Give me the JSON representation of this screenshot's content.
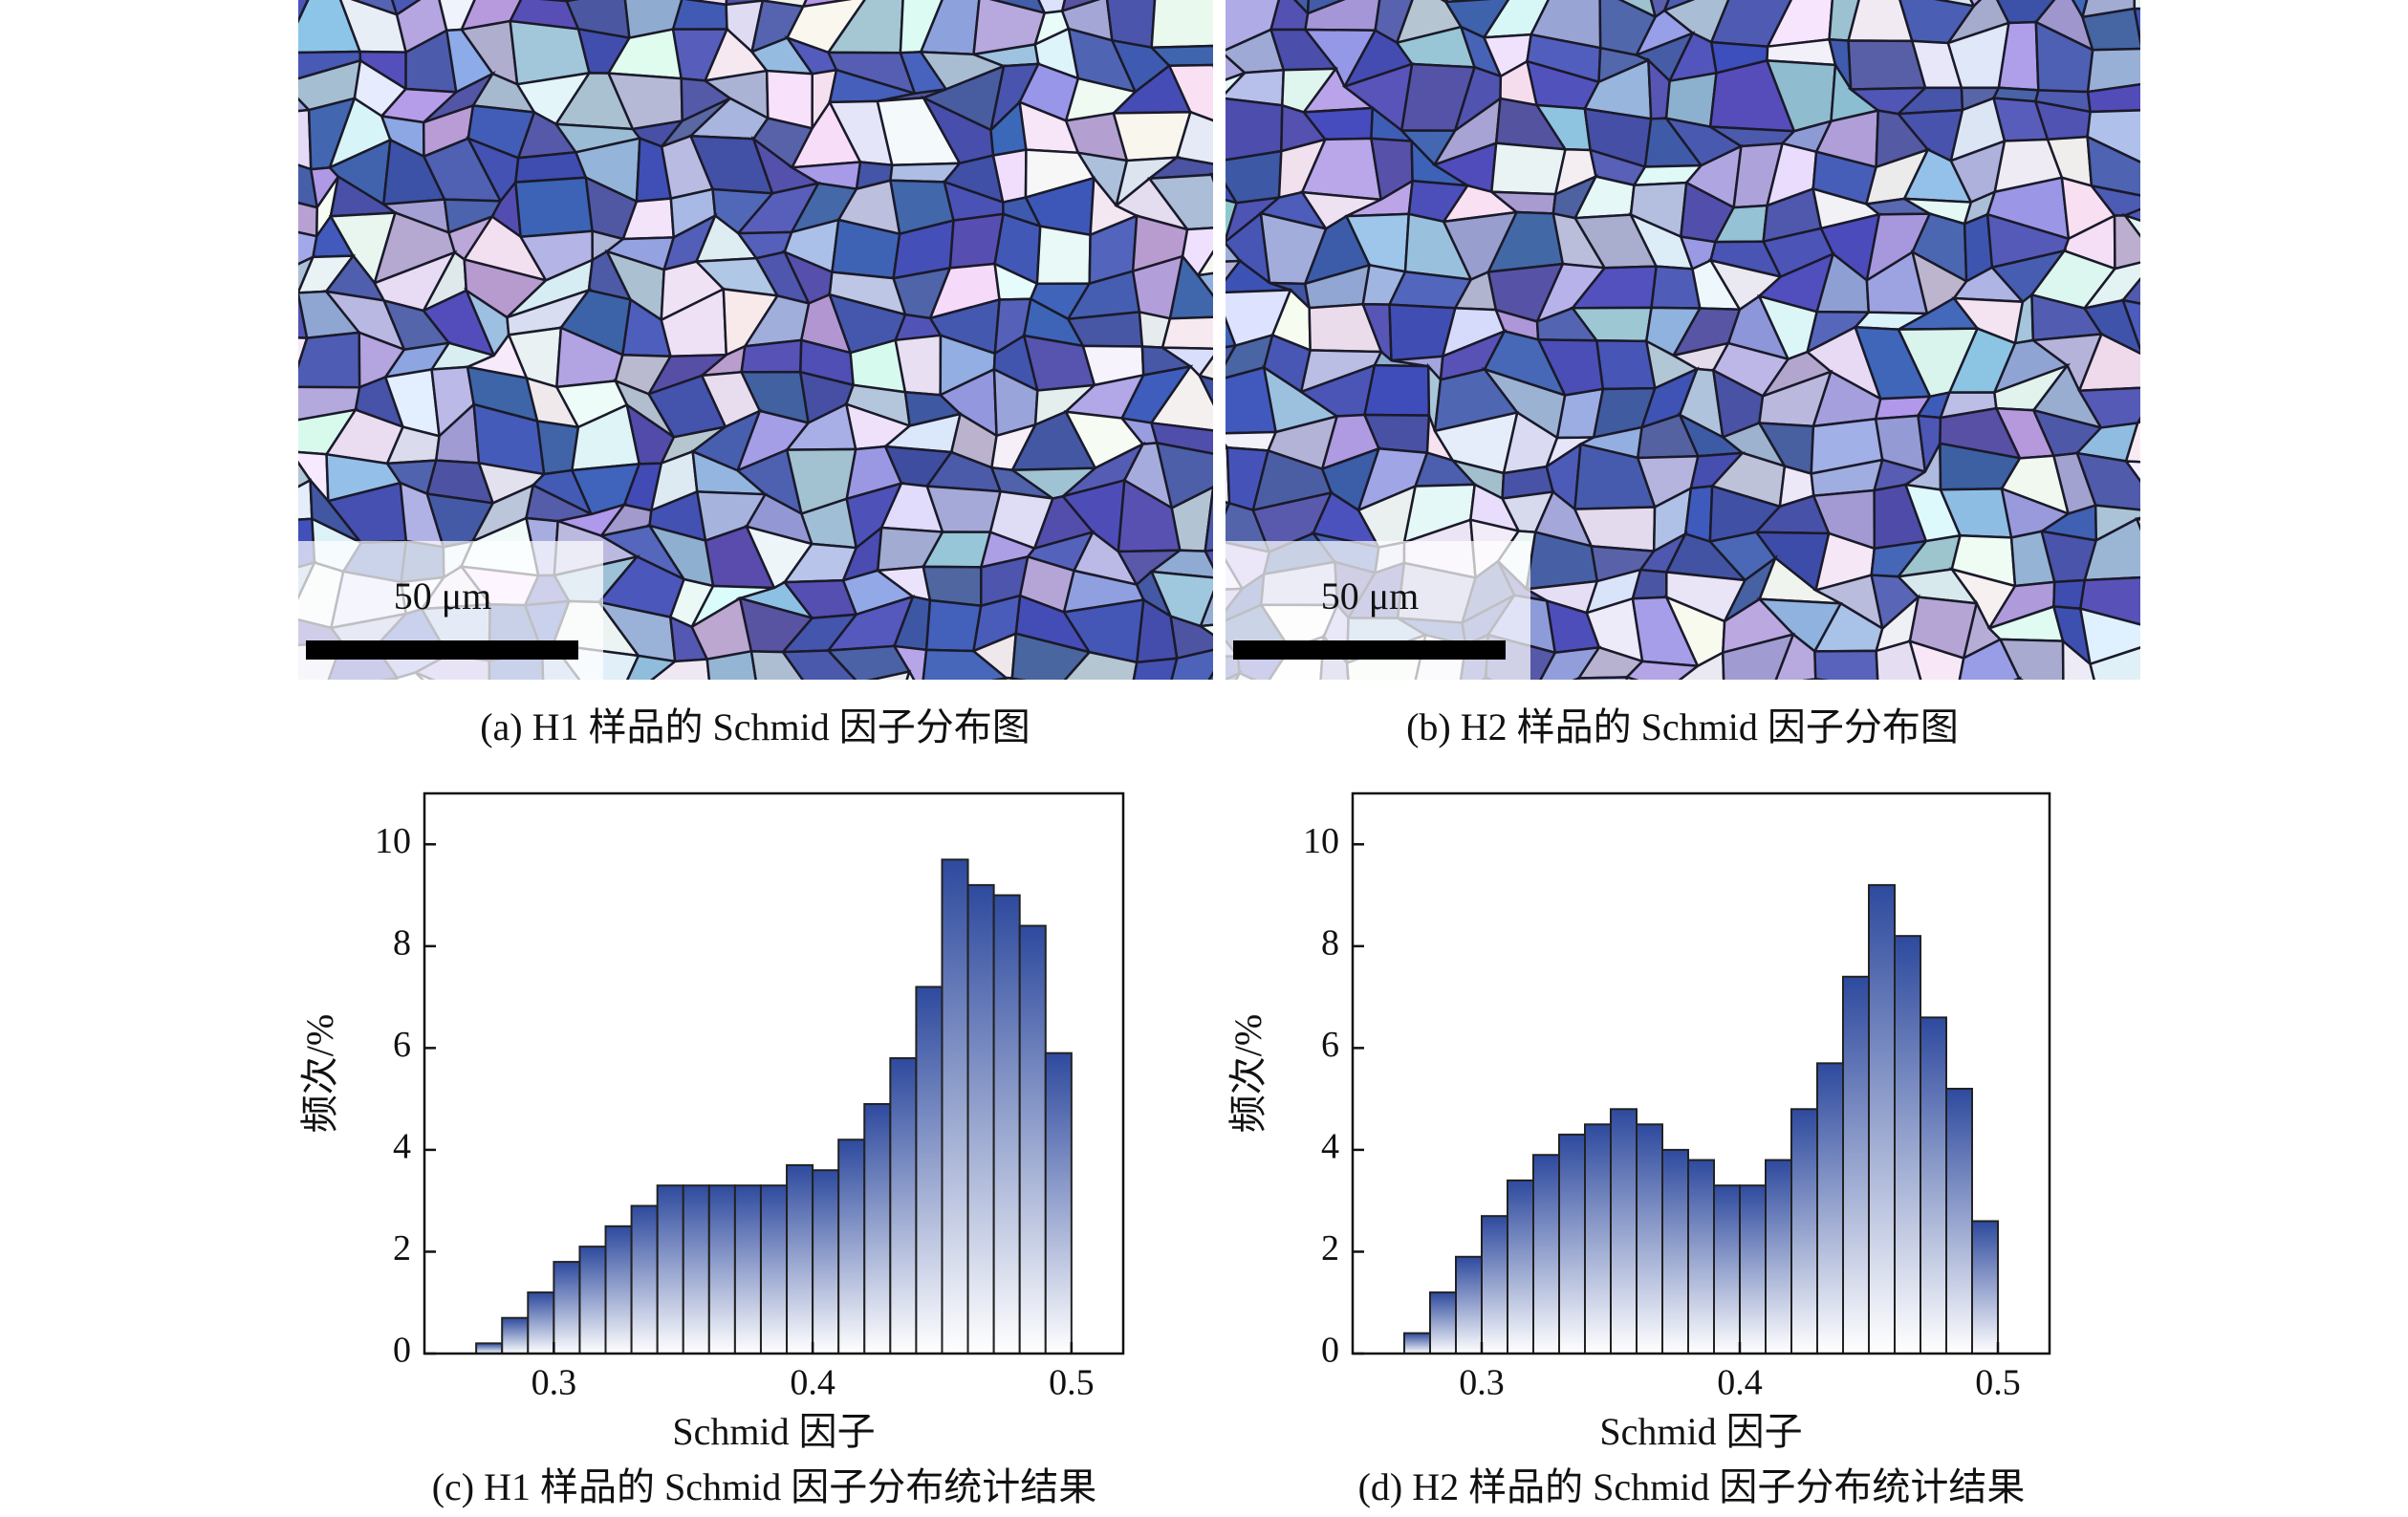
{
  "images": [
    {
      "caption": "(a) H1 样品的 Schmid 因子分布图",
      "scale_bar": "50 μm"
    },
    {
      "caption": "(b) H2 样品的 Schmid 因子分布图",
      "scale_bar": "50 μm"
    }
  ],
  "chart_data": [
    {
      "type": "histogram",
      "caption": "(c) H1 样品的 Schmid 因子分布统计结果",
      "x_label": "Schmid 因子",
      "y_label": "频次/%",
      "bins": [
        0.27,
        0.28,
        0.29,
        0.3,
        0.31,
        0.32,
        0.33,
        0.34,
        0.35,
        0.36,
        0.37,
        0.38,
        0.39,
        0.4,
        0.41,
        0.42,
        0.43,
        0.44,
        0.45,
        0.46,
        0.47,
        0.48,
        0.49,
        0.5
      ],
      "values": [
        0.2,
        0.7,
        1.2,
        1.8,
        2.1,
        2.5,
        2.9,
        3.3,
        3.3,
        3.3,
        3.3,
        3.3,
        3.7,
        3.6,
        4.2,
        4.9,
        5.8,
        7.2,
        9.7,
        9.2,
        9.0,
        8.4,
        5.9
      ],
      "color": "#2e4a9e",
      "xlim": [
        0.25,
        0.52
      ],
      "xticks": [
        0.3,
        0.4,
        0.5
      ],
      "ylim": [
        0,
        11
      ],
      "yticks": [
        0,
        2,
        4,
        6,
        8,
        10
      ]
    },
    {
      "type": "histogram",
      "caption": "(d) H2 样品的 Schmid 因子分布统计结果",
      "x_label": "Schmid 因子",
      "y_label": "频次/%",
      "bins": [
        0.27,
        0.28,
        0.29,
        0.3,
        0.31,
        0.32,
        0.33,
        0.34,
        0.35,
        0.36,
        0.37,
        0.38,
        0.39,
        0.4,
        0.41,
        0.42,
        0.43,
        0.44,
        0.45,
        0.46,
        0.47,
        0.48,
        0.49,
        0.5
      ],
      "values": [
        0.4,
        1.2,
        1.9,
        2.7,
        3.4,
        3.9,
        4.3,
        4.5,
        4.8,
        4.5,
        4.0,
        3.8,
        3.3,
        3.3,
        3.8,
        4.8,
        5.7,
        7.4,
        9.2,
        8.2,
        6.6,
        5.2,
        2.6
      ],
      "color": "#2e4a9e",
      "xlim": [
        0.25,
        0.52
      ],
      "xticks": [
        0.3,
        0.4,
        0.5
      ],
      "ylim": [
        0,
        11
      ],
      "yticks": [
        0,
        2,
        4,
        6,
        8,
        10
      ]
    }
  ]
}
